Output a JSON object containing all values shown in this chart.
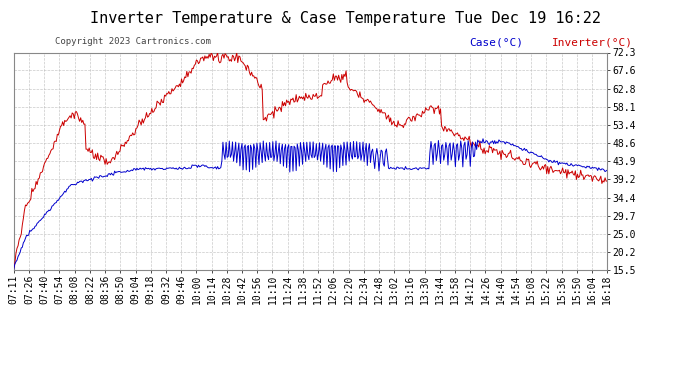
{
  "title": "Inverter Temperature & Case Temperature Tue Dec 19 16:22",
  "copyright": "Copyright 2023 Cartronics.com",
  "legend_case": "Case(°C)",
  "legend_inverter": "Inverter(°C)",
  "case_color": "#0000cc",
  "inverter_color": "#cc0000",
  "bg_color": "#ffffff",
  "plot_bg_color": "#ffffff",
  "grid_color": "#bbbbbb",
  "ylim": [
    15.5,
    72.3
  ],
  "yticks": [
    15.5,
    20.2,
    25.0,
    29.7,
    34.4,
    39.2,
    43.9,
    48.6,
    53.4,
    58.1,
    62.8,
    67.6,
    72.3
  ],
  "xtick_labels": [
    "07:11",
    "07:26",
    "07:40",
    "07:54",
    "08:08",
    "08:22",
    "08:36",
    "08:50",
    "09:04",
    "09:18",
    "09:32",
    "09:46",
    "10:00",
    "10:14",
    "10:28",
    "10:42",
    "10:56",
    "11:10",
    "11:24",
    "11:38",
    "11:52",
    "12:06",
    "12:20",
    "12:34",
    "12:48",
    "13:02",
    "13:16",
    "13:30",
    "13:44",
    "13:58",
    "14:12",
    "14:26",
    "14:40",
    "14:54",
    "15:08",
    "15:22",
    "15:36",
    "15:50",
    "16:04",
    "16:18"
  ],
  "title_fontsize": 11,
  "copyright_fontsize": 6.5,
  "legend_fontsize": 8,
  "tick_fontsize": 7
}
